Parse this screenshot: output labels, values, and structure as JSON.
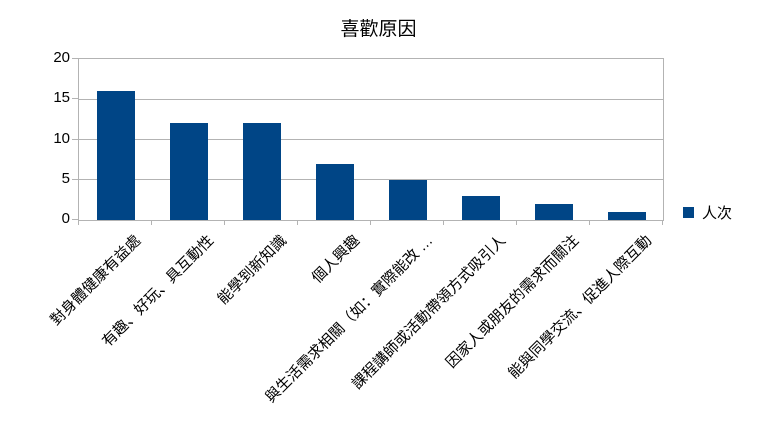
{
  "chart_data": {
    "type": "bar",
    "title": "喜歡原因",
    "categories": [
      "對身體健康有益處",
      "有趣、好玩、具互動性",
      "能學到新知識",
      "個人興趣",
      "與生活需求相關（如：實際能改 …",
      "課程講師或活動帶領方式吸引人",
      "因家人或朋友的需求而關注",
      "能與同學交流、促進人際互動"
    ],
    "series": [
      {
        "name": "人次",
        "values": [
          16,
          12,
          12,
          7,
          5,
          3,
          2,
          1
        ]
      }
    ],
    "xlabel": "",
    "ylabel": "",
    "ylim": [
      0,
      20
    ],
    "yticks": [
      0,
      5,
      10,
      15,
      20
    ],
    "grid": true,
    "legend_position": "right",
    "colors": {
      "bar": "#004586",
      "gridline": "#b3b3b3",
      "text": "#000000",
      "background": "#ffffff"
    }
  }
}
